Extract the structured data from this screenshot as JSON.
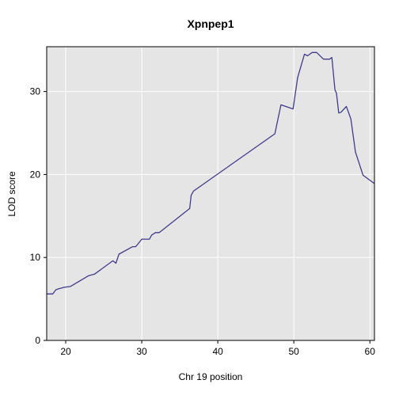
{
  "chart_data": {
    "type": "line",
    "title": "Xpnpep1",
    "xlabel": "Chr 19 position",
    "ylabel": "LOD score",
    "xlim": [
      17.5,
      60.6
    ],
    "ylim": [
      0,
      35.4
    ],
    "x_ticks": [
      20,
      30,
      40,
      50,
      60
    ],
    "y_ticks": [
      0,
      10,
      20,
      30
    ],
    "grid": true,
    "line_color": "#3f3b8c",
    "panel_color": "#e5e5e5",
    "series": [
      {
        "points": [
          [
            17.5,
            5.6
          ],
          [
            18.3,
            5.6
          ],
          [
            18.7,
            6.1
          ],
          [
            19.0,
            6.2
          ],
          [
            19.8,
            6.4
          ],
          [
            20.6,
            6.5
          ],
          [
            23.0,
            7.8
          ],
          [
            23.8,
            8.0
          ],
          [
            26.2,
            9.6
          ],
          [
            26.6,
            9.3
          ],
          [
            27.0,
            10.4
          ],
          [
            28.8,
            11.3
          ],
          [
            29.2,
            11.3
          ],
          [
            30.0,
            12.2
          ],
          [
            31.0,
            12.2
          ],
          [
            31.3,
            12.7
          ],
          [
            31.8,
            13.0
          ],
          [
            32.3,
            13.0
          ],
          [
            36.3,
            15.9
          ],
          [
            36.5,
            17.5
          ],
          [
            36.8,
            18.0
          ],
          [
            47.5,
            24.9
          ],
          [
            48.3,
            28.4
          ],
          [
            49.9,
            27.9
          ],
          [
            50.5,
            31.7
          ],
          [
            51.4,
            34.5
          ],
          [
            51.8,
            34.3
          ],
          [
            52.4,
            34.7
          ],
          [
            53.0,
            34.7
          ],
          [
            53.9,
            33.9
          ],
          [
            54.7,
            33.9
          ],
          [
            55.0,
            34.1
          ],
          [
            55.4,
            30.2
          ],
          [
            55.6,
            29.8
          ],
          [
            55.9,
            27.4
          ],
          [
            56.2,
            27.5
          ],
          [
            56.9,
            28.2
          ],
          [
            57.5,
            26.7
          ],
          [
            58.1,
            22.7
          ],
          [
            59.1,
            19.9
          ],
          [
            60.6,
            18.9
          ]
        ]
      }
    ]
  }
}
